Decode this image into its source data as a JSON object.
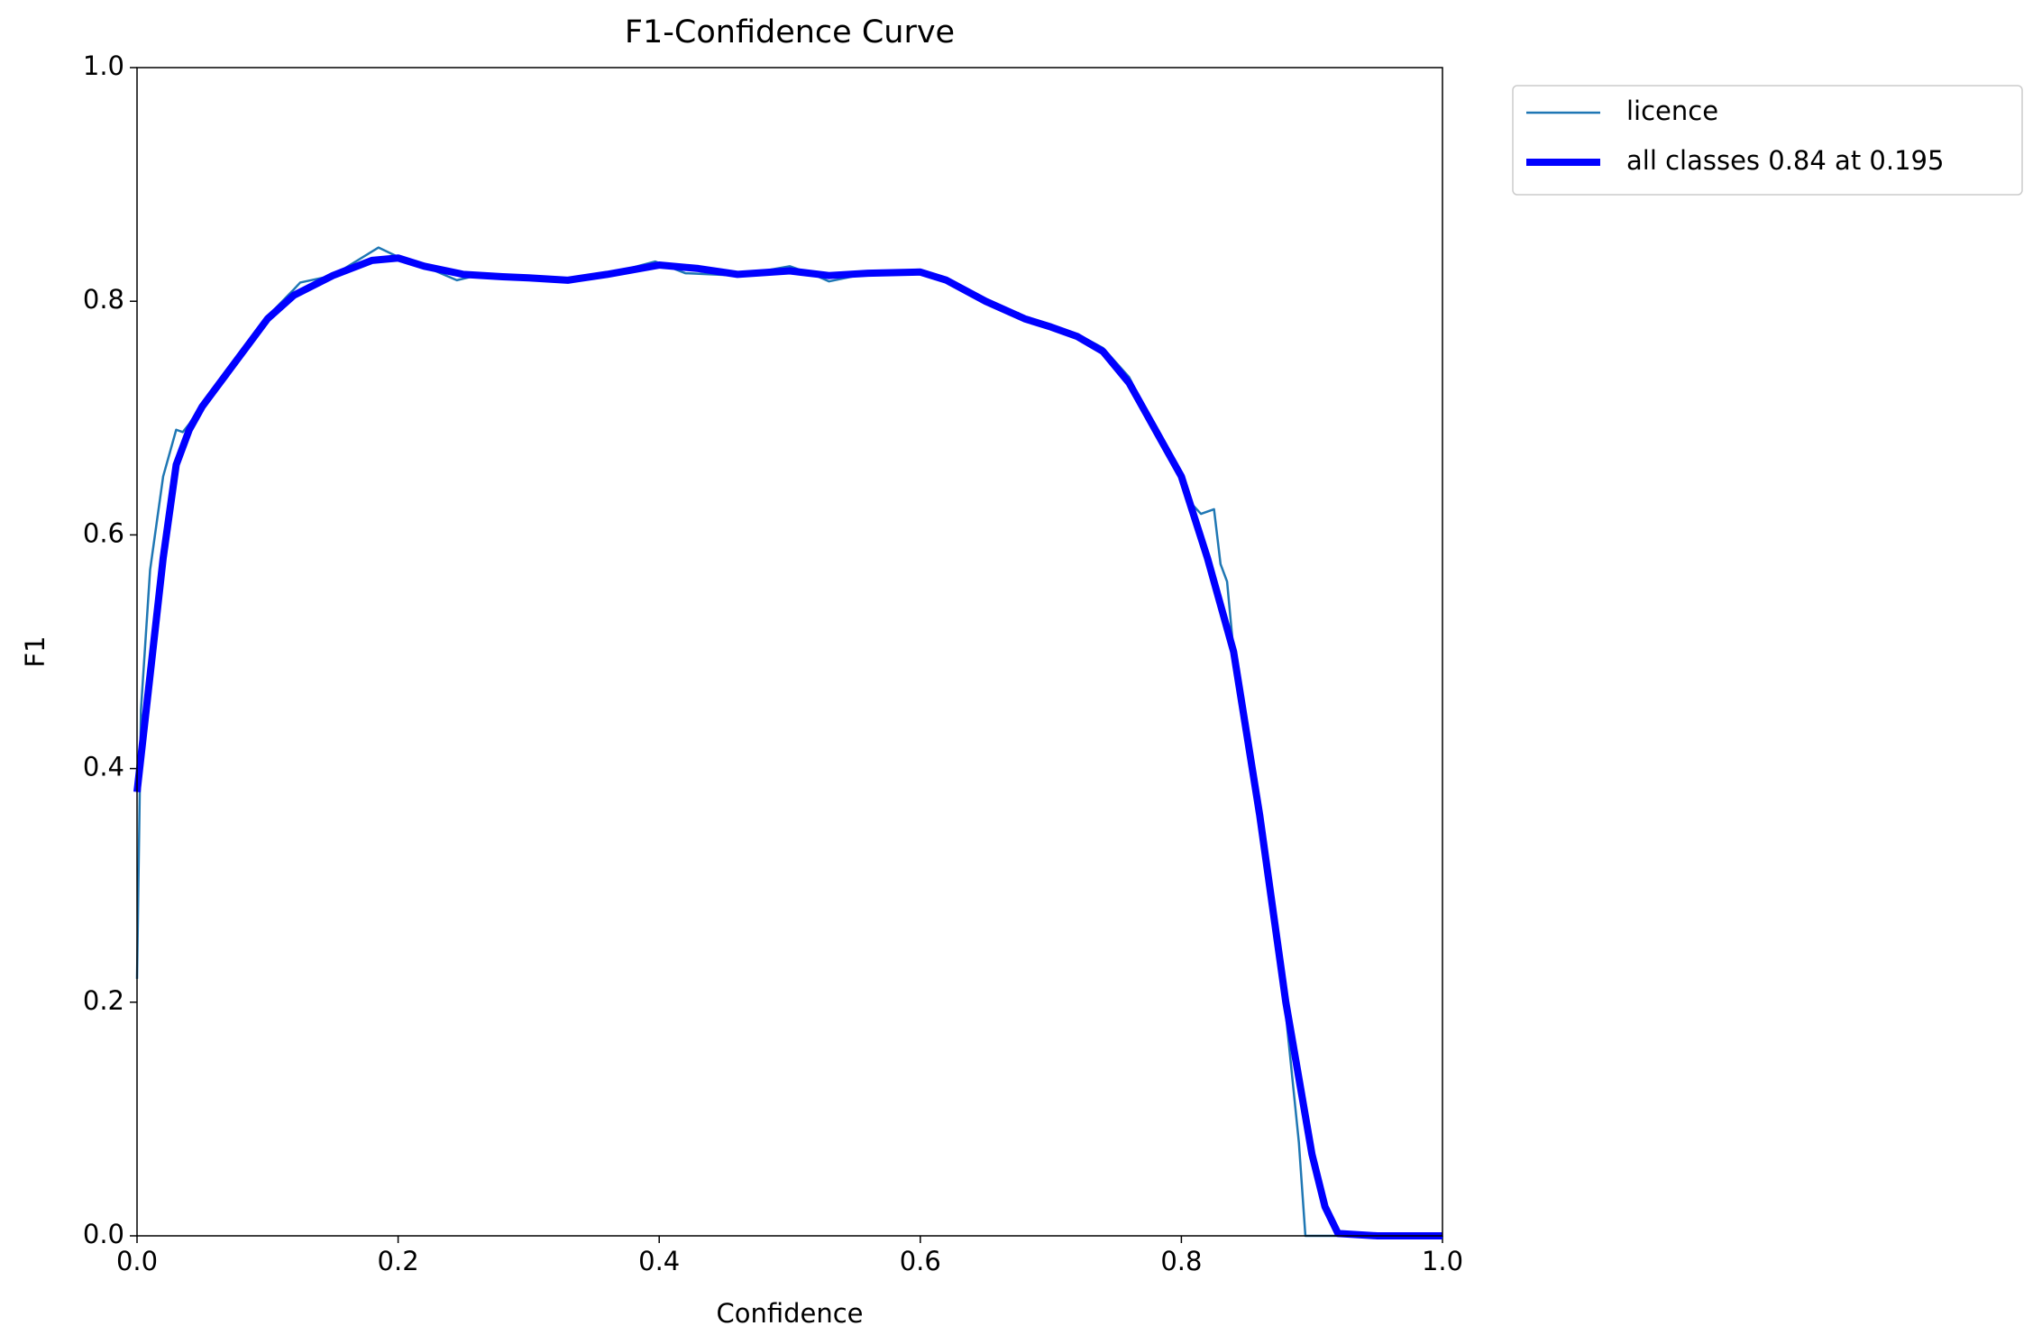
{
  "chart_data": {
    "type": "line",
    "title": "F1-Confidence Curve",
    "x_label": "Confidence",
    "y_label": "F1",
    "xlim": [
      0,
      1
    ],
    "ylim": [
      0,
      1
    ],
    "xticks": [
      {
        "value": 0,
        "label": "0.0"
      },
      0.2,
      0.4,
      0.6,
      0.8,
      {
        "value": 1,
        "label": "1.0"
      }
    ],
    "yticks": [
      {
        "value": 0,
        "label": "0.0"
      },
      0.2,
      0.4,
      0.6,
      0.8,
      {
        "value": 1,
        "label": "1.0"
      }
    ],
    "legend": "outside-upper-right",
    "series": [
      {
        "name": "licence",
        "color": "#1f77b4",
        "width": 2.5,
        "x": [
          0,
          0.003,
          0.01,
          0.02,
          0.03,
          0.035,
          0.04,
          0.05,
          0.06,
          0.08,
          0.1,
          0.12,
          0.125,
          0.15,
          0.185,
          0.2,
          0.22,
          0.245,
          0.26,
          0.28,
          0.3,
          0.33,
          0.36,
          0.397,
          0.42,
          0.46,
          0.5,
          0.52,
          0.53,
          0.56,
          0.6,
          0.62,
          0.65,
          0.67,
          0.675,
          0.68,
          0.7,
          0.72,
          0.74,
          0.76,
          0.78,
          0.8,
          0.805,
          0.815,
          0.825,
          0.83,
          0.835,
          0.84,
          0.86,
          0.88,
          0.89,
          0.895,
          0.93,
          1.0
        ],
        "values": [
          0.22,
          0.45,
          0.57,
          0.65,
          0.69,
          0.688,
          0.695,
          0.712,
          0.725,
          0.752,
          0.787,
          0.81,
          0.816,
          0.822,
          0.846,
          0.838,
          0.83,
          0.818,
          0.822,
          0.821,
          0.82,
          0.818,
          0.823,
          0.834,
          0.824,
          0.822,
          0.83,
          0.822,
          0.817,
          0.824,
          0.826,
          0.82,
          0.8,
          0.788,
          0.79,
          0.785,
          0.778,
          0.772,
          0.76,
          0.735,
          0.69,
          0.65,
          0.63,
          0.618,
          0.622,
          0.575,
          0.56,
          0.5,
          0.37,
          0.19,
          0.08,
          0,
          0,
          0
        ]
      },
      {
        "name": "all classes 0.84 at 0.195",
        "color": "#0000ff",
        "width": 8,
        "x": [
          0,
          0.01,
          0.02,
          0.03,
          0.04,
          0.05,
          0.06,
          0.08,
          0.1,
          0.12,
          0.15,
          0.18,
          0.2,
          0.22,
          0.25,
          0.28,
          0.3,
          0.33,
          0.36,
          0.4,
          0.43,
          0.46,
          0.5,
          0.53,
          0.56,
          0.6,
          0.62,
          0.65,
          0.68,
          0.7,
          0.72,
          0.74,
          0.76,
          0.78,
          0.8,
          0.82,
          0.84,
          0.86,
          0.88,
          0.9,
          0.91,
          0.92,
          0.95,
          1.0
        ],
        "values": [
          0.38,
          0.48,
          0.58,
          0.66,
          0.69,
          0.71,
          0.725,
          0.755,
          0.785,
          0.805,
          0.822,
          0.835,
          0.837,
          0.83,
          0.823,
          0.821,
          0.82,
          0.818,
          0.823,
          0.831,
          0.828,
          0.823,
          0.826,
          0.822,
          0.824,
          0.825,
          0.818,
          0.8,
          0.785,
          0.778,
          0.77,
          0.757,
          0.73,
          0.69,
          0.65,
          0.58,
          0.5,
          0.36,
          0.2,
          0.07,
          0.025,
          0.002,
          0,
          0
        ]
      }
    ]
  }
}
